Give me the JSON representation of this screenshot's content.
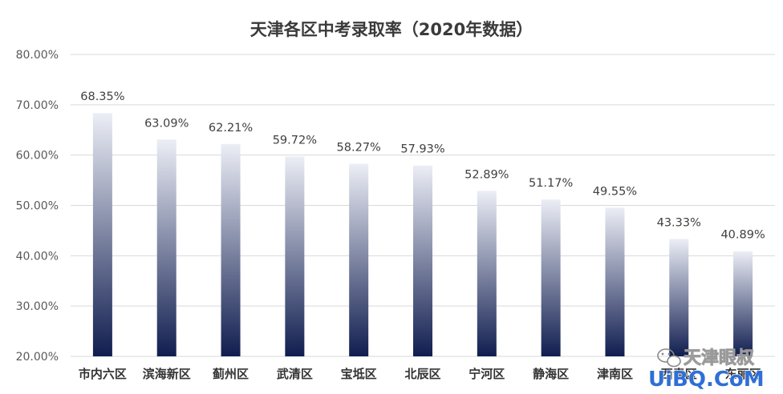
{
  "chart_data": {
    "type": "bar",
    "title": "天津各区中考录取率（2020年数据）",
    "categories": [
      "市内六区",
      "滨海新区",
      "蓟州区",
      "武清区",
      "宝坻区",
      "北辰区",
      "宁河区",
      "静海区",
      "津南区",
      "西青区",
      "东丽区"
    ],
    "values": [
      68.35,
      63.09,
      62.21,
      59.72,
      58.27,
      57.93,
      52.89,
      51.17,
      49.55,
      43.33,
      40.89
    ],
    "value_labels": [
      "68.35%",
      "63.09%",
      "62.21%",
      "59.72%",
      "58.27%",
      "57.93%",
      "52.89%",
      "51.17%",
      "49.55%",
      "43.33%",
      "40.89%"
    ],
    "y_ticks": [
      20,
      30,
      40,
      50,
      60,
      70,
      80
    ],
    "y_tick_labels": [
      "20.00%",
      "30.00%",
      "40.00%",
      "50.00%",
      "60.00%",
      "70.00%",
      "80.00%"
    ],
    "ylim": [
      20,
      80
    ],
    "xlabel": "",
    "ylabel": "",
    "grid": true,
    "legend": "none",
    "bar_gradient": {
      "top": "#eceef6",
      "bottom": "#101d4f"
    }
  },
  "watermark": {
    "account_name": "天津眼叔",
    "site_name": "UiBQ.CoM",
    "icon": "wechat-icon"
  }
}
